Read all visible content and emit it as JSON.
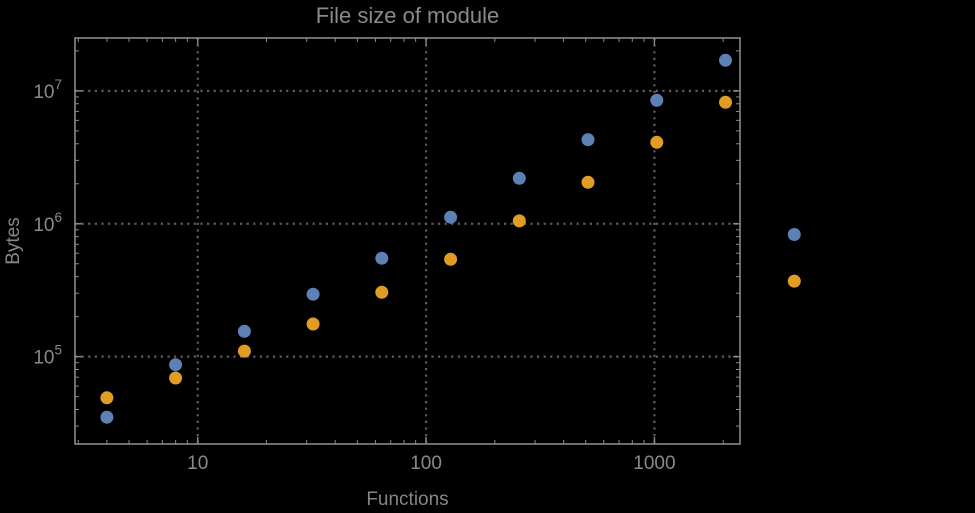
{
  "title": "File size of module",
  "colors": {
    "background": "#000000",
    "text": "#8a8a8a",
    "frame": "#8a8a8a",
    "gridline": "#5e5e5e",
    "series_blue": "#5e81b5",
    "series_orange": "#e19c24"
  },
  "chart_data": {
    "type": "scatter",
    "title": "File size of module",
    "xlabel": "Functions",
    "ylabel": "Bytes",
    "x_scale": "log",
    "y_scale": "log",
    "grid": "dotted major gridlines",
    "legend": "none",
    "frame": "ticks on all four edges, pointing inward",
    "xlim": [
      2.9,
      2370
    ],
    "ylim": [
      22000,
      25000000
    ],
    "x_ticks": [
      10,
      100,
      1000
    ],
    "x_tick_labels": [
      "10",
      "100",
      "1000"
    ],
    "y_ticks": [
      100000,
      1000000,
      10000000
    ],
    "y_tick_labels": [
      {
        "base": "10",
        "exp": "5"
      },
      {
        "base": "10",
        "exp": "6"
      },
      {
        "base": "10",
        "exp": "7"
      }
    ],
    "x": [
      4,
      8,
      16,
      32,
      64,
      128,
      256,
      512,
      1024,
      2048,
      4096
    ],
    "series": [
      {
        "name": "blue",
        "color": "#5e81b5",
        "values": [
          35000,
          87000,
          155000,
          295000,
          550000,
          1120000,
          2200000,
          4300000,
          8500000,
          17000000,
          830000
        ]
      },
      {
        "name": "orange",
        "color": "#e19c24",
        "values": [
          49000,
          69000,
          110000,
          176000,
          305000,
          540000,
          1050000,
          2050000,
          4100000,
          8200000,
          370000
        ]
      }
    ],
    "note_outside_frame": "points at x=4096 are drawn to the right of the plot frame (no clipping)"
  }
}
